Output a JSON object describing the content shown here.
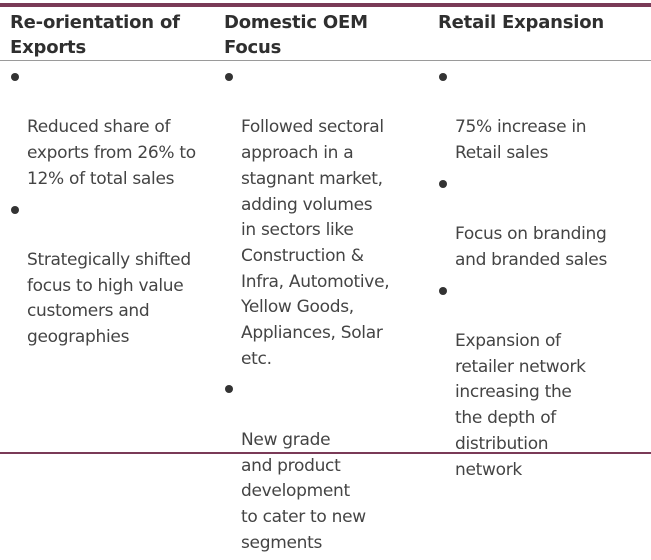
{
  "columns": [
    {
      "title": "Re-orientation of\nExports",
      "bullets": [
        "Reduced share of\nexports from 26% to\n12% of total sales",
        "Strategically shifted\nfocus to high value\ncustomers and\ngeographies"
      ]
    },
    {
      "title": "Domestic OEM Focus",
      "bullets": [
        "Followed sectoral\napproach in a\nstagnant market,\nadding volumes\nin sectors like\nConstruction &\nInfra, Automotive,\nYellow Goods,\nAppliances, Solar\netc.",
        "New grade\nand product\ndevelopment\nto cater to new\nsegments"
      ]
    },
    {
      "title": "Retail Expansion",
      "bullets": [
        "75% increase in\nRetail sales",
        "Focus on branding\nand branded sales",
        "Expansion of\nretailer network\nincreasing the\nthe depth of\ndistribution\nnetwork"
      ]
    }
  ],
  "colors": {
    "rule": "#7a3a57",
    "text": "#444444",
    "heading": "#2f2f2f"
  }
}
